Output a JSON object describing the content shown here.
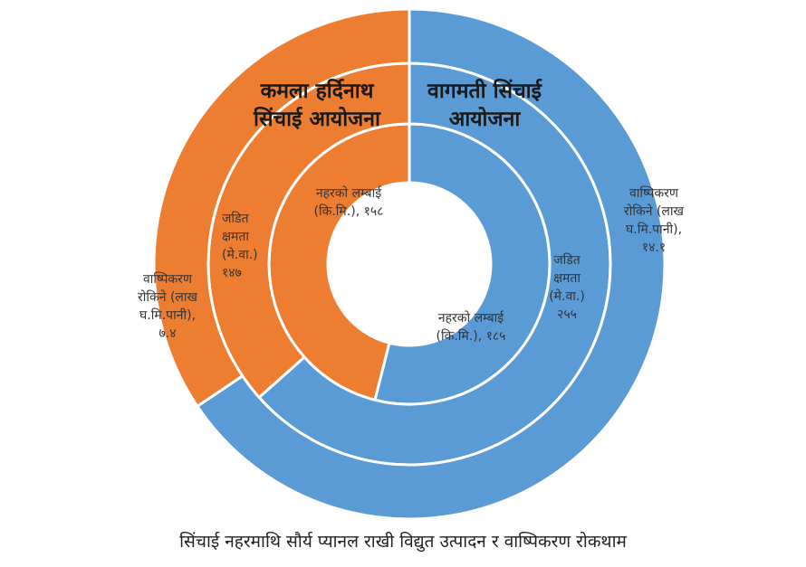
{
  "chart_data": {
    "type": "pie",
    "subtype": "multi-ring-donut",
    "colors": {
      "series_1": "#ED7D31",
      "series_2": "#5B9BD5"
    },
    "projects": [
      "कमला हर्दिनाथ सिंचाई आयोजना",
      "वागमती सिंचाई आयोजना"
    ],
    "rings": [
      {
        "ring": "inner",
        "values": [
          158,
          185
        ],
        "labels": [
          [
            "नहरको लम्बाई",
            "(कि.मि.), १५८"
          ],
          [
            "नहरको लम्बाई",
            "(कि.मि.), १८५"
          ]
        ]
      },
      {
        "ring": "middle",
        "values": [
          147,
          255
        ],
        "labels": [
          [
            "जडित",
            "क्षमता",
            "(मे.वा.)",
            "१४७"
          ],
          [
            "जडित",
            "क्षमता",
            "(मे.वा.)",
            "२५५"
          ]
        ]
      },
      {
        "ring": "outer",
        "values": [
          7.4,
          14.1
        ],
        "labels": [
          [
            "वाष्पिकरण",
            "रोकिने (लाख",
            "घ.मि.पानी),",
            "७.४"
          ],
          [
            "वाष्पिकरण",
            "रोकिने (लाख",
            "घ.मि.पानी),",
            "१४.१"
          ]
        ]
      }
    ],
    "project_labels": [
      [
        "कमला हर्दिनाथ",
        "सिंचाई आयोजना"
      ],
      [
        "वागमती सिंचाई",
        "आयोजना"
      ]
    ],
    "caption": "सिंचाई नहरमाथि सौर्य प्यानल राखी विद्युत उत्पादन र वाष्पिकरण रोकथाम"
  }
}
